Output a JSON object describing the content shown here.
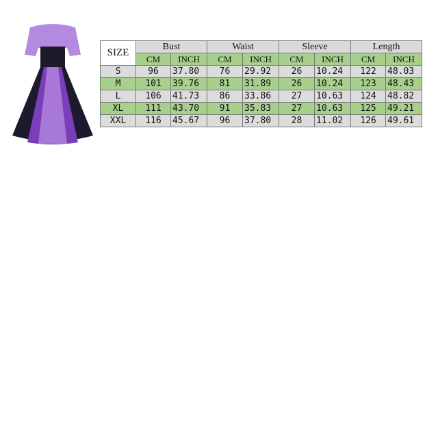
{
  "colors": {
    "header_gray": "#dadada",
    "green": "#a8d08d",
    "dress_purple": "#a878d8",
    "dress_dark": "#1c1a2e"
  },
  "image": {
    "icon": "purple-dress-product-photo"
  },
  "table": {
    "size_label": "SIZE",
    "groups": [
      "Bust",
      "Waist",
      "Sleeve",
      "Length"
    ],
    "units": [
      "CM",
      "INCH",
      "CM",
      "INCH",
      "CM",
      "INCH",
      "CM",
      "INCH"
    ],
    "rows": [
      [
        "S",
        "96",
        "37.80",
        "76",
        "29.92",
        "26",
        "10.24",
        "122",
        "48.03"
      ],
      [
        "M",
        "101",
        "39.76",
        "81",
        "31.89",
        "26",
        "10.24",
        "123",
        "48.43"
      ],
      [
        "L",
        "106",
        "41.73",
        "86",
        "33.86",
        "27",
        "10.63",
        "124",
        "48.82"
      ],
      [
        "XL",
        "111",
        "43.70",
        "91",
        "35.83",
        "27",
        "10.63",
        "125",
        "49.21"
      ],
      [
        "XXL",
        "116",
        "45.67",
        "96",
        "37.80",
        "28",
        "11.02",
        "126",
        "49.61"
      ]
    ]
  }
}
